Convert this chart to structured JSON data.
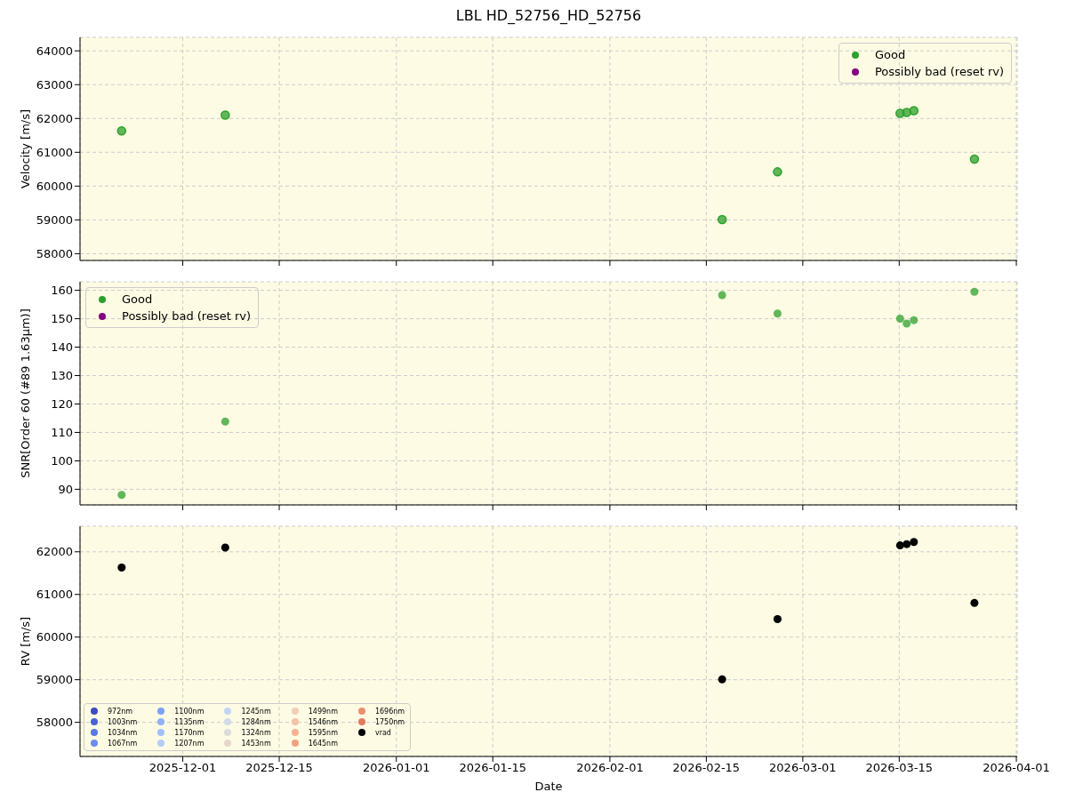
{
  "chart_data": [
    {
      "type": "scatter",
      "title": "LBL HD_52756_HD_52756",
      "ylabel": "Velocity [m/s]",
      "x": [
        "2025-11-22T03:00",
        "2025-12-07T04:00",
        "2026-02-17T07:00",
        "2026-02-25T08:00",
        "2026-03-15T03:00",
        "2026-03-16T02:00",
        "2026-03-17T03:00",
        "2026-03-25T22:00"
      ],
      "series": [
        {
          "name": "Good",
          "color": "#2ca02c",
          "values": [
            61630,
            62100,
            59010,
            60420,
            62150,
            62180,
            62230,
            60800
          ]
        },
        {
          "name": "Possibly bad (reset rv)",
          "color": "#800080",
          "values": [
            null,
            null,
            null,
            null,
            null,
            null,
            null,
            null
          ]
        }
      ],
      "xlim": [
        "2025-11-16T02:00",
        "2026-04-01T03:00"
      ],
      "xticks": [
        "2025-12-01",
        "2025-12-15",
        "2026-01-01",
        "2026-01-15",
        "2026-02-01",
        "2026-02-15",
        "2026-03-01",
        "2026-03-15",
        "2026-04-01"
      ],
      "ylim": [
        57800,
        64400
      ],
      "yticks": [
        58000,
        59000,
        60000,
        61000,
        62000,
        63000,
        64000
      ],
      "tick_labels": "y",
      "grid": true,
      "legend": "top right",
      "marker": "circle"
    },
    {
      "type": "scatter",
      "ylabel": "SNR[Order 60 (#89 1.63μm)]",
      "x": [
        "2025-11-22T03:00",
        "2025-12-07T04:00",
        "2026-02-17T07:00",
        "2026-02-25T08:00",
        "2026-03-15T03:00",
        "2026-03-16T02:00",
        "2026-03-17T03:00",
        "2026-03-25T22:00"
      ],
      "series": [
        {
          "name": "Good",
          "color": "#2ca02c",
          "values": [
            88,
            113.8,
            158.3,
            151.8,
            150,
            148.3,
            149.5,
            159.5
          ]
        },
        {
          "name": "Possibly bad (reset rv)",
          "color": "#800080",
          "values": [
            null,
            null,
            null,
            null,
            null,
            null,
            null,
            null
          ]
        }
      ],
      "xlim": [
        "2025-11-16T02:00",
        "2026-04-01T03:00"
      ],
      "xticks": [
        "2025-12-01",
        "2025-12-15",
        "2026-01-01",
        "2026-01-15",
        "2026-02-01",
        "2026-02-15",
        "2026-03-01",
        "2026-03-15",
        "2026-04-01"
      ],
      "ylim": [
        84.5,
        163
      ],
      "yticks": [
        90,
        100,
        110,
        120,
        130,
        140,
        150,
        160
      ],
      "tick_labels": "y",
      "grid": true,
      "legend": "top left",
      "marker": "circle"
    },
    {
      "type": "scatter",
      "xlabel": "Date",
      "ylabel": "RV [m/s]",
      "x": [
        "2025-11-22T03:00",
        "2025-12-07T04:00",
        "2026-02-17T07:00",
        "2026-02-25T08:00",
        "2026-03-15T03:00",
        "2026-03-16T02:00",
        "2026-03-17T03:00",
        "2026-03-25T22:00"
      ],
      "series": [
        {
          "name": "972nm",
          "color": "#3b4cc0",
          "values": [
            null,
            null,
            null,
            null,
            null,
            null,
            null,
            null
          ]
        },
        {
          "name": "1003nm",
          "color": "#4a63d3",
          "values": [
            null,
            null,
            null,
            null,
            null,
            null,
            null,
            null
          ]
        },
        {
          "name": "1034nm",
          "color": "#5a78e4",
          "values": [
            null,
            null,
            null,
            null,
            null,
            null,
            null,
            null
          ]
        },
        {
          "name": "1067nm",
          "color": "#6b8df0",
          "values": [
            null,
            null,
            null,
            null,
            null,
            null,
            null,
            null
          ]
        },
        {
          "name": "1100nm",
          "color": "#7da0f9",
          "values": [
            null,
            null,
            null,
            null,
            null,
            null,
            null,
            null
          ]
        },
        {
          "name": "1135nm",
          "color": "#8fb1fe",
          "values": [
            null,
            null,
            null,
            null,
            null,
            null,
            null,
            null
          ]
        },
        {
          "name": "1170nm",
          "color": "#a1c0ff",
          "values": [
            null,
            null,
            null,
            null,
            null,
            null,
            null,
            null
          ]
        },
        {
          "name": "1207nm",
          "color": "#b2ccfb",
          "values": [
            null,
            null,
            null,
            null,
            null,
            null,
            null,
            null
          ]
        },
        {
          "name": "1245nm",
          "color": "#c3d5f4",
          "values": [
            null,
            null,
            null,
            null,
            null,
            null,
            null,
            null
          ]
        },
        {
          "name": "1284nm",
          "color": "#d2dbe8",
          "values": [
            null,
            null,
            null,
            null,
            null,
            null,
            null,
            null
          ]
        },
        {
          "name": "1324nm",
          "color": "#dddcdc",
          "values": [
            null,
            null,
            null,
            null,
            null,
            null,
            null,
            null
          ]
        },
        {
          "name": "1453nm",
          "color": "#e8d6cc",
          "values": [
            null,
            null,
            null,
            null,
            null,
            null,
            null,
            null
          ]
        },
        {
          "name": "1499nm",
          "color": "#f1cdba",
          "values": [
            null,
            null,
            null,
            null,
            null,
            null,
            null,
            null
          ]
        },
        {
          "name": "1546nm",
          "color": "#f5c1a8",
          "values": [
            null,
            null,
            null,
            null,
            null,
            null,
            null,
            null
          ]
        },
        {
          "name": "1595nm",
          "color": "#f6b394",
          "values": [
            null,
            null,
            null,
            null,
            null,
            null,
            null,
            null
          ]
        },
        {
          "name": "1645nm",
          "color": "#f3a281",
          "values": [
            null,
            null,
            null,
            null,
            null,
            null,
            null,
            null
          ]
        },
        {
          "name": "1696nm",
          "color": "#ec8f6e",
          "values": [
            null,
            null,
            null,
            null,
            null,
            null,
            null,
            null
          ]
        },
        {
          "name": "1750nm",
          "color": "#e27b5d",
          "values": [
            null,
            null,
            null,
            null,
            null,
            null,
            null,
            null
          ]
        },
        {
          "name": "vrad",
          "color": "#000000",
          "values": [
            61630,
            62100,
            59010,
            60420,
            62150,
            62180,
            62230,
            60800
          ]
        }
      ],
      "xlim": [
        "2025-11-16T02:00",
        "2026-04-01T03:00"
      ],
      "xticks": [
        "2025-12-01",
        "2025-12-15",
        "2026-01-01",
        "2026-01-15",
        "2026-02-01",
        "2026-02-15",
        "2026-03-01",
        "2026-03-15",
        "2026-04-01"
      ],
      "ylim": [
        57200,
        62600
      ],
      "yticks": [
        58000,
        59000,
        60000,
        61000,
        62000
      ],
      "grid": true,
      "legend": "bottom left",
      "marker": "circle"
    }
  ]
}
